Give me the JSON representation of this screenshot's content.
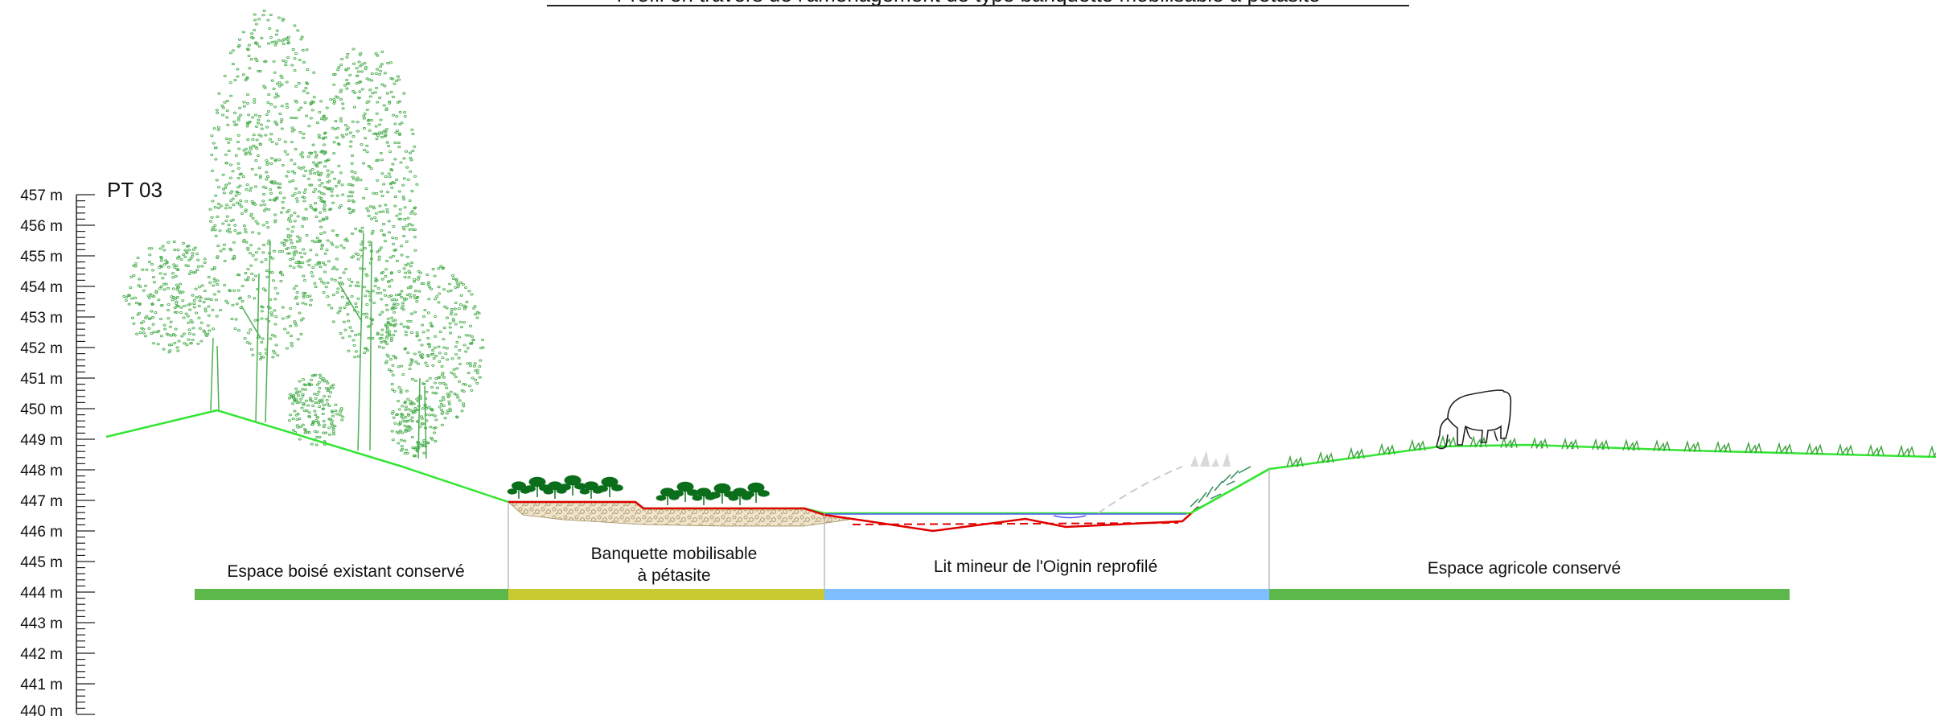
{
  "header": {
    "title": "Profil en travers de l'aménagement de type banquette mobilisable à pétasite"
  },
  "profile": {
    "id": "PT 03"
  },
  "axis": {
    "unit": "m",
    "min": 440,
    "max": 457,
    "labels": [
      "457 m",
      "456 m",
      "455 m",
      "454 m",
      "453 m",
      "452 m",
      "451 m",
      "450 m",
      "449 m",
      "448 m",
      "447 m",
      "446 m",
      "445 m",
      "444 m",
      "443 m",
      "442 m",
      "441 m",
      "440 m"
    ]
  },
  "zones": [
    {
      "line1": "Espace boisé existant conservé",
      "line2": "",
      "color": "#5cb84a"
    },
    {
      "line1": "Banquette mobilisable",
      "line2": "à pétasite",
      "color": "#c9c932"
    },
    {
      "line1": "Lit mineur de l'Oignin reprofilé",
      "line2": "",
      "color": "#7fbfff"
    },
    {
      "line1": "Espace agricole conservé",
      "line2": "",
      "color": "#5cb84a"
    }
  ],
  "colors": {
    "terrain": "#33e633",
    "vegetation": "#4caf50",
    "project_profile": "#e00000",
    "water": "#5555ff",
    "substrate": "#c8b48a",
    "petasite": "#0a6e1a"
  },
  "icons": [
    "tree-icon",
    "shrub-icon",
    "petasite-icon",
    "cow-icon",
    "grass-tuft-icon"
  ]
}
